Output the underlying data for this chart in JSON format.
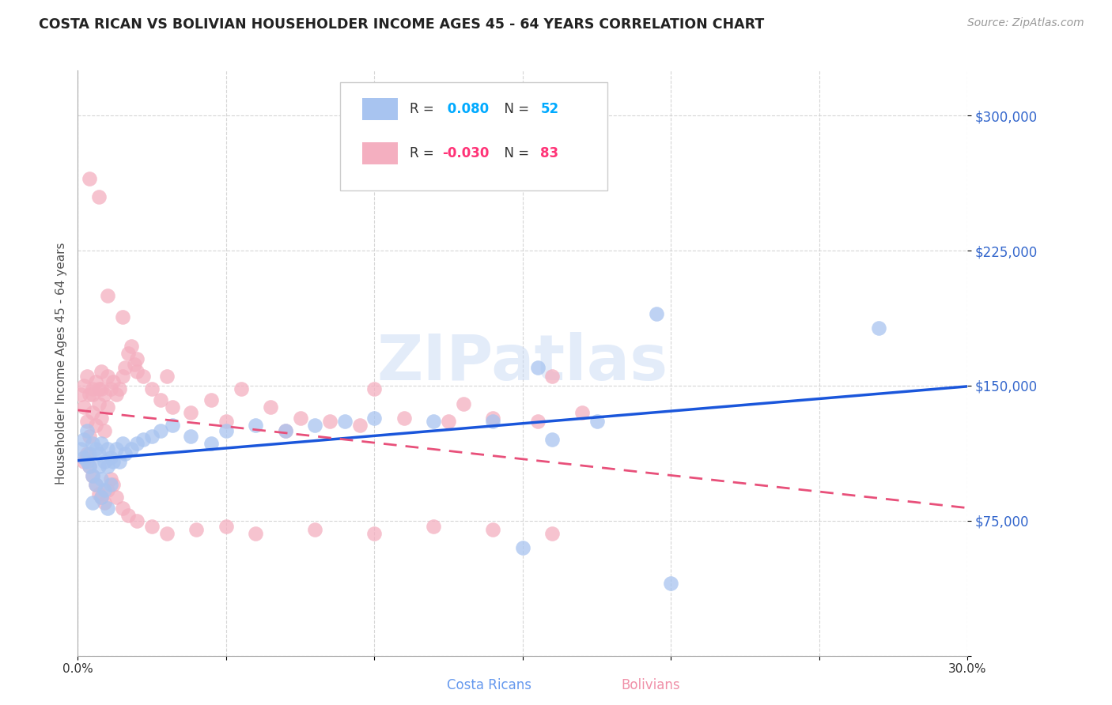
{
  "title": "COSTA RICAN VS BOLIVIAN HOUSEHOLDER INCOME AGES 45 - 64 YEARS CORRELATION CHART",
  "source": "Source: ZipAtlas.com",
  "ylabel": "Householder Income Ages 45 - 64 years",
  "x_min": 0.0,
  "x_max": 0.3,
  "y_min": 0,
  "y_max": 325000,
  "x_ticks": [
    0.0,
    0.05,
    0.1,
    0.15,
    0.2,
    0.25,
    0.3
  ],
  "x_tick_labels": [
    "0.0%",
    "",
    "",
    "",
    "",
    "",
    "30.0%"
  ],
  "y_ticks": [
    0,
    75000,
    150000,
    225000,
    300000
  ],
  "y_tick_labels": [
    "",
    "$75,000",
    "$150,000",
    "$225,000",
    "$300,000"
  ],
  "cr_R": 0.08,
  "cr_N": 52,
  "bo_R": -0.03,
  "bo_N": 83,
  "cr_color": "#a8c4f0",
  "bo_color": "#f4afc0",
  "cr_line_color": "#1a56db",
  "bo_line_color": "#e8507a",
  "watermark_color": "#c8daf5",
  "cr_x": [
    0.001,
    0.002,
    0.002,
    0.003,
    0.003,
    0.004,
    0.004,
    0.005,
    0.005,
    0.006,
    0.006,
    0.007,
    0.007,
    0.008,
    0.008,
    0.009,
    0.009,
    0.01,
    0.01,
    0.011,
    0.011,
    0.012,
    0.013,
    0.014,
    0.015,
    0.016,
    0.018,
    0.02,
    0.022,
    0.025,
    0.028,
    0.032,
    0.038,
    0.045,
    0.05,
    0.06,
    0.07,
    0.08,
    0.09,
    0.1,
    0.12,
    0.14,
    0.155,
    0.16,
    0.175,
    0.195,
    0.27,
    0.005,
    0.008,
    0.01,
    0.15,
    0.2
  ],
  "cr_y": [
    115000,
    110000,
    120000,
    108000,
    125000,
    112000,
    105000,
    118000,
    100000,
    115000,
    95000,
    112000,
    105000,
    118000,
    98000,
    108000,
    92000,
    115000,
    105000,
    110000,
    95000,
    108000,
    115000,
    108000,
    118000,
    112000,
    115000,
    118000,
    120000,
    122000,
    125000,
    128000,
    122000,
    118000,
    125000,
    128000,
    125000,
    128000,
    130000,
    132000,
    130000,
    130000,
    160000,
    120000,
    130000,
    190000,
    182000,
    85000,
    88000,
    82000,
    60000,
    40000
  ],
  "bo_x": [
    0.001,
    0.002,
    0.002,
    0.003,
    0.003,
    0.004,
    0.004,
    0.005,
    0.005,
    0.006,
    0.006,
    0.007,
    0.007,
    0.008,
    0.008,
    0.009,
    0.009,
    0.01,
    0.01,
    0.011,
    0.012,
    0.013,
    0.014,
    0.015,
    0.016,
    0.017,
    0.018,
    0.019,
    0.02,
    0.022,
    0.025,
    0.028,
    0.032,
    0.038,
    0.045,
    0.055,
    0.065,
    0.075,
    0.085,
    0.095,
    0.11,
    0.125,
    0.14,
    0.155,
    0.17,
    0.002,
    0.003,
    0.004,
    0.005,
    0.006,
    0.007,
    0.008,
    0.009,
    0.01,
    0.011,
    0.012,
    0.013,
    0.015,
    0.017,
    0.02,
    0.025,
    0.03,
    0.04,
    0.05,
    0.06,
    0.08,
    0.1,
    0.12,
    0.14,
    0.16,
    0.004,
    0.007,
    0.01,
    0.015,
    0.02,
    0.03,
    0.05,
    0.07,
    0.1,
    0.13,
    0.16,
    0.005,
    0.008
  ],
  "bo_y": [
    145000,
    150000,
    138000,
    155000,
    130000,
    145000,
    122000,
    148000,
    135000,
    152000,
    128000,
    148000,
    140000,
    158000,
    132000,
    145000,
    125000,
    155000,
    138000,
    148000,
    152000,
    145000,
    148000,
    155000,
    160000,
    168000,
    172000,
    162000,
    158000,
    155000,
    148000,
    142000,
    138000,
    135000,
    142000,
    148000,
    138000,
    132000,
    130000,
    128000,
    132000,
    130000,
    132000,
    130000,
    135000,
    108000,
    112000,
    105000,
    100000,
    95000,
    90000,
    88000,
    85000,
    92000,
    98000,
    95000,
    88000,
    82000,
    78000,
    75000,
    72000,
    68000,
    70000,
    72000,
    68000,
    70000,
    68000,
    72000,
    70000,
    68000,
    265000,
    255000,
    200000,
    188000,
    165000,
    155000,
    130000,
    125000,
    148000,
    140000,
    155000,
    145000,
    148000
  ]
}
